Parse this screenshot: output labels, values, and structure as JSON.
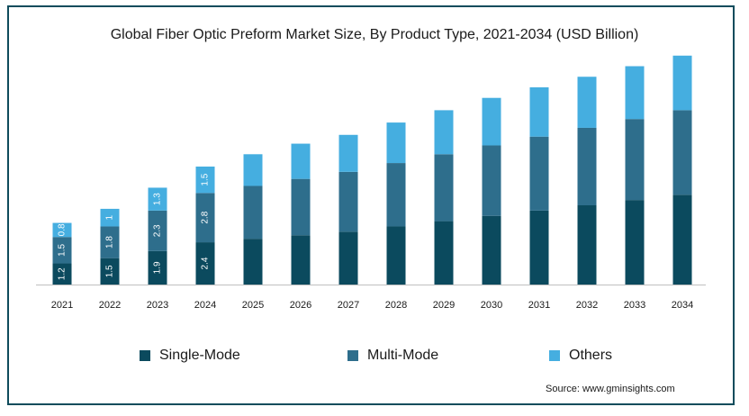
{
  "chart_data": {
    "type": "bar",
    "stacked": true,
    "title": "Global Fiber Optic Preform Market Size, By Product Type, 2021-2034 (USD Billion)",
    "xlabel": "",
    "ylabel": "",
    "categories": [
      "2021",
      "2022",
      "2023",
      "2024",
      "2025",
      "2026",
      "2027",
      "2028",
      "2029",
      "2030",
      "2031",
      "2032",
      "2033",
      "2034"
    ],
    "series": [
      {
        "name": "Single-Mode",
        "color": "#0b4a5e",
        "values": [
          1.2,
          1.5,
          1.9,
          2.4,
          2.6,
          2.8,
          3.0,
          3.3,
          3.6,
          3.9,
          4.2,
          4.5,
          4.8,
          5.1
        ],
        "labels": [
          "1.2",
          "1.5",
          "1.9",
          "2.4",
          "",
          "",
          "",
          "",
          "",
          "",
          "",
          "",
          "",
          ""
        ]
      },
      {
        "name": "Multi-Mode",
        "color": "#2e6e8c",
        "values": [
          1.5,
          1.8,
          2.3,
          2.8,
          3.0,
          3.2,
          3.4,
          3.6,
          3.8,
          4.0,
          4.2,
          4.4,
          4.6,
          4.8
        ],
        "labels": [
          "1.5",
          "1.8",
          "2.3",
          "2.8",
          "",
          "",
          "",
          "",
          "",
          "",
          "",
          "",
          "",
          ""
        ]
      },
      {
        "name": "Others",
        "color": "#45aee0",
        "values": [
          0.8,
          1.0,
          1.3,
          1.5,
          1.8,
          2.0,
          2.1,
          2.3,
          2.5,
          2.7,
          2.8,
          2.9,
          3.0,
          3.1
        ],
        "labels": [
          "0.8",
          "1",
          "1.3",
          "1.5",
          "",
          "",
          "",
          "",
          "",
          "",
          "",
          "",
          "",
          ""
        ]
      }
    ],
    "ylim": [
      0,
      13.5
    ],
    "legend_position": "bottom",
    "grid": false
  },
  "legend": {
    "items": [
      {
        "label": "Single-Mode",
        "color": "#0b4a5e"
      },
      {
        "label": "Multi-Mode",
        "color": "#2e6e8c"
      },
      {
        "label": "Others",
        "color": "#45aee0"
      }
    ]
  },
  "source": "Source: www.gminsights.com"
}
